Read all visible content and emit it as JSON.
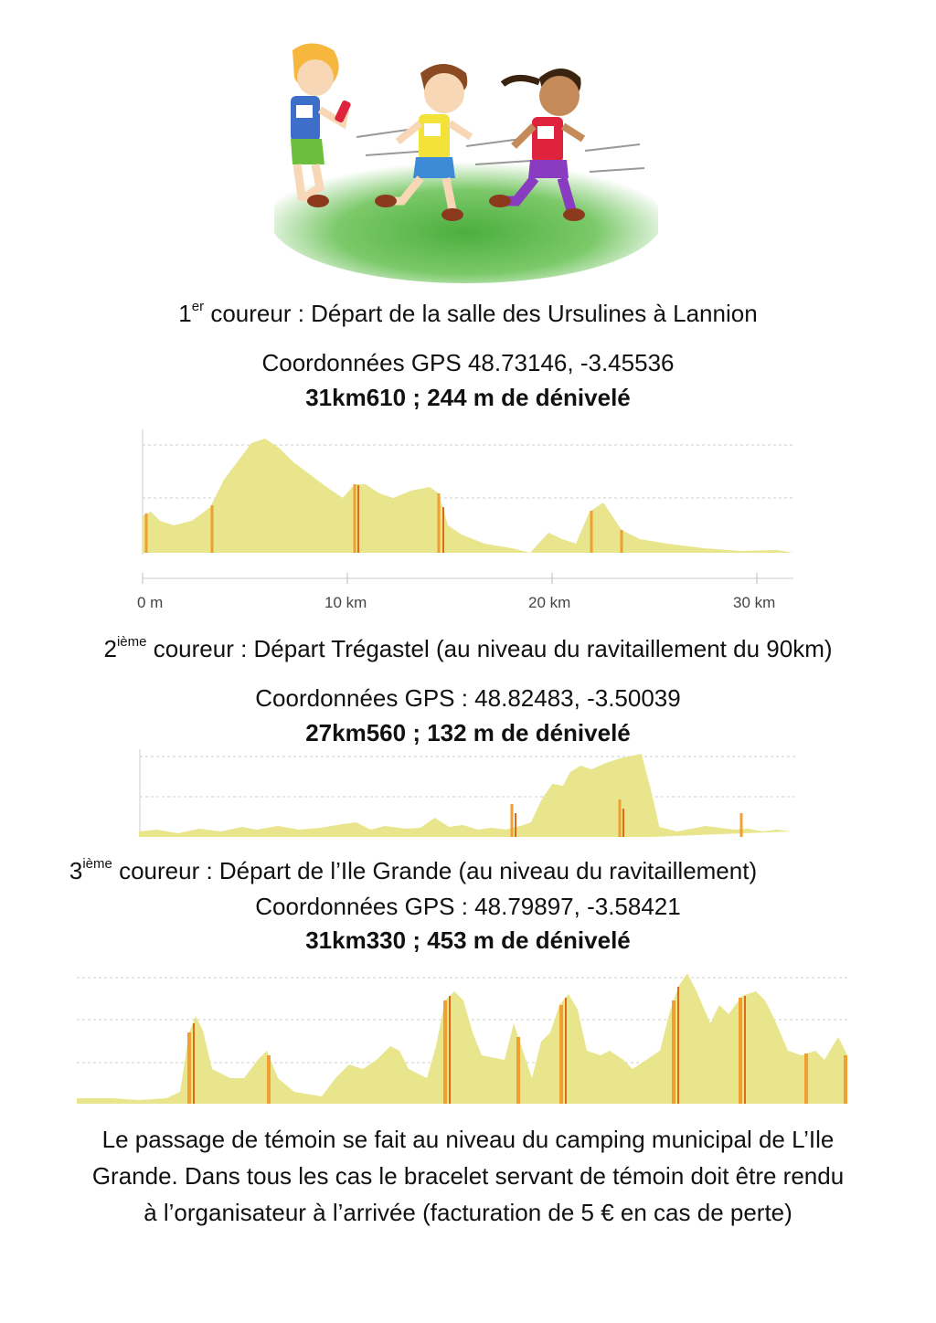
{
  "illustration": {
    "icon": "three-children-running-relay-icon"
  },
  "runner1": {
    "rank": "1",
    "suffix": "er",
    "title": " coureur : Départ de la salle des Ursulines à Lannion",
    "gps": "Coordonnées GPS 48.73146, -3.45536",
    "summary": "31km610 ; 244 m de dénivelé",
    "axis_ticks": [
      "0 m",
      "10 km",
      "20 km",
      "30 km"
    ]
  },
  "runner2": {
    "rank": "2",
    "suffix": "ième",
    "title": " coureur : Départ Trégastel (au niveau du ravitaillement du 90km)",
    "gps": "Coordonnées GPS : 48.82483, -3.50039",
    "summary": "27km560 ; 132 m de dénivelé"
  },
  "runner3": {
    "rank": "3",
    "suffix": "ième",
    "title": " coureur : Départ de l’Ile Grande (au niveau du ravitaillement)",
    "gps": "Coordonnées GPS : 48.79897, -3.58421",
    "summary": "31km330 ; 453 m de dénivelé"
  },
  "footer": {
    "line1": "Le passage de témoin se fait au niveau du camping municipal de L’Ile",
    "line2": "Grande. Dans tous les cas le bracelet servant de témoin doit être rendu",
    "line3": "à l’organisateur à l’arrivée (facturation de 5 € en cas de perte)"
  },
  "colors": {
    "fill": "#e8e58c",
    "steep": "#f0a030",
    "very_steep": "#e06a1a",
    "grid": "#cccccc"
  }
}
